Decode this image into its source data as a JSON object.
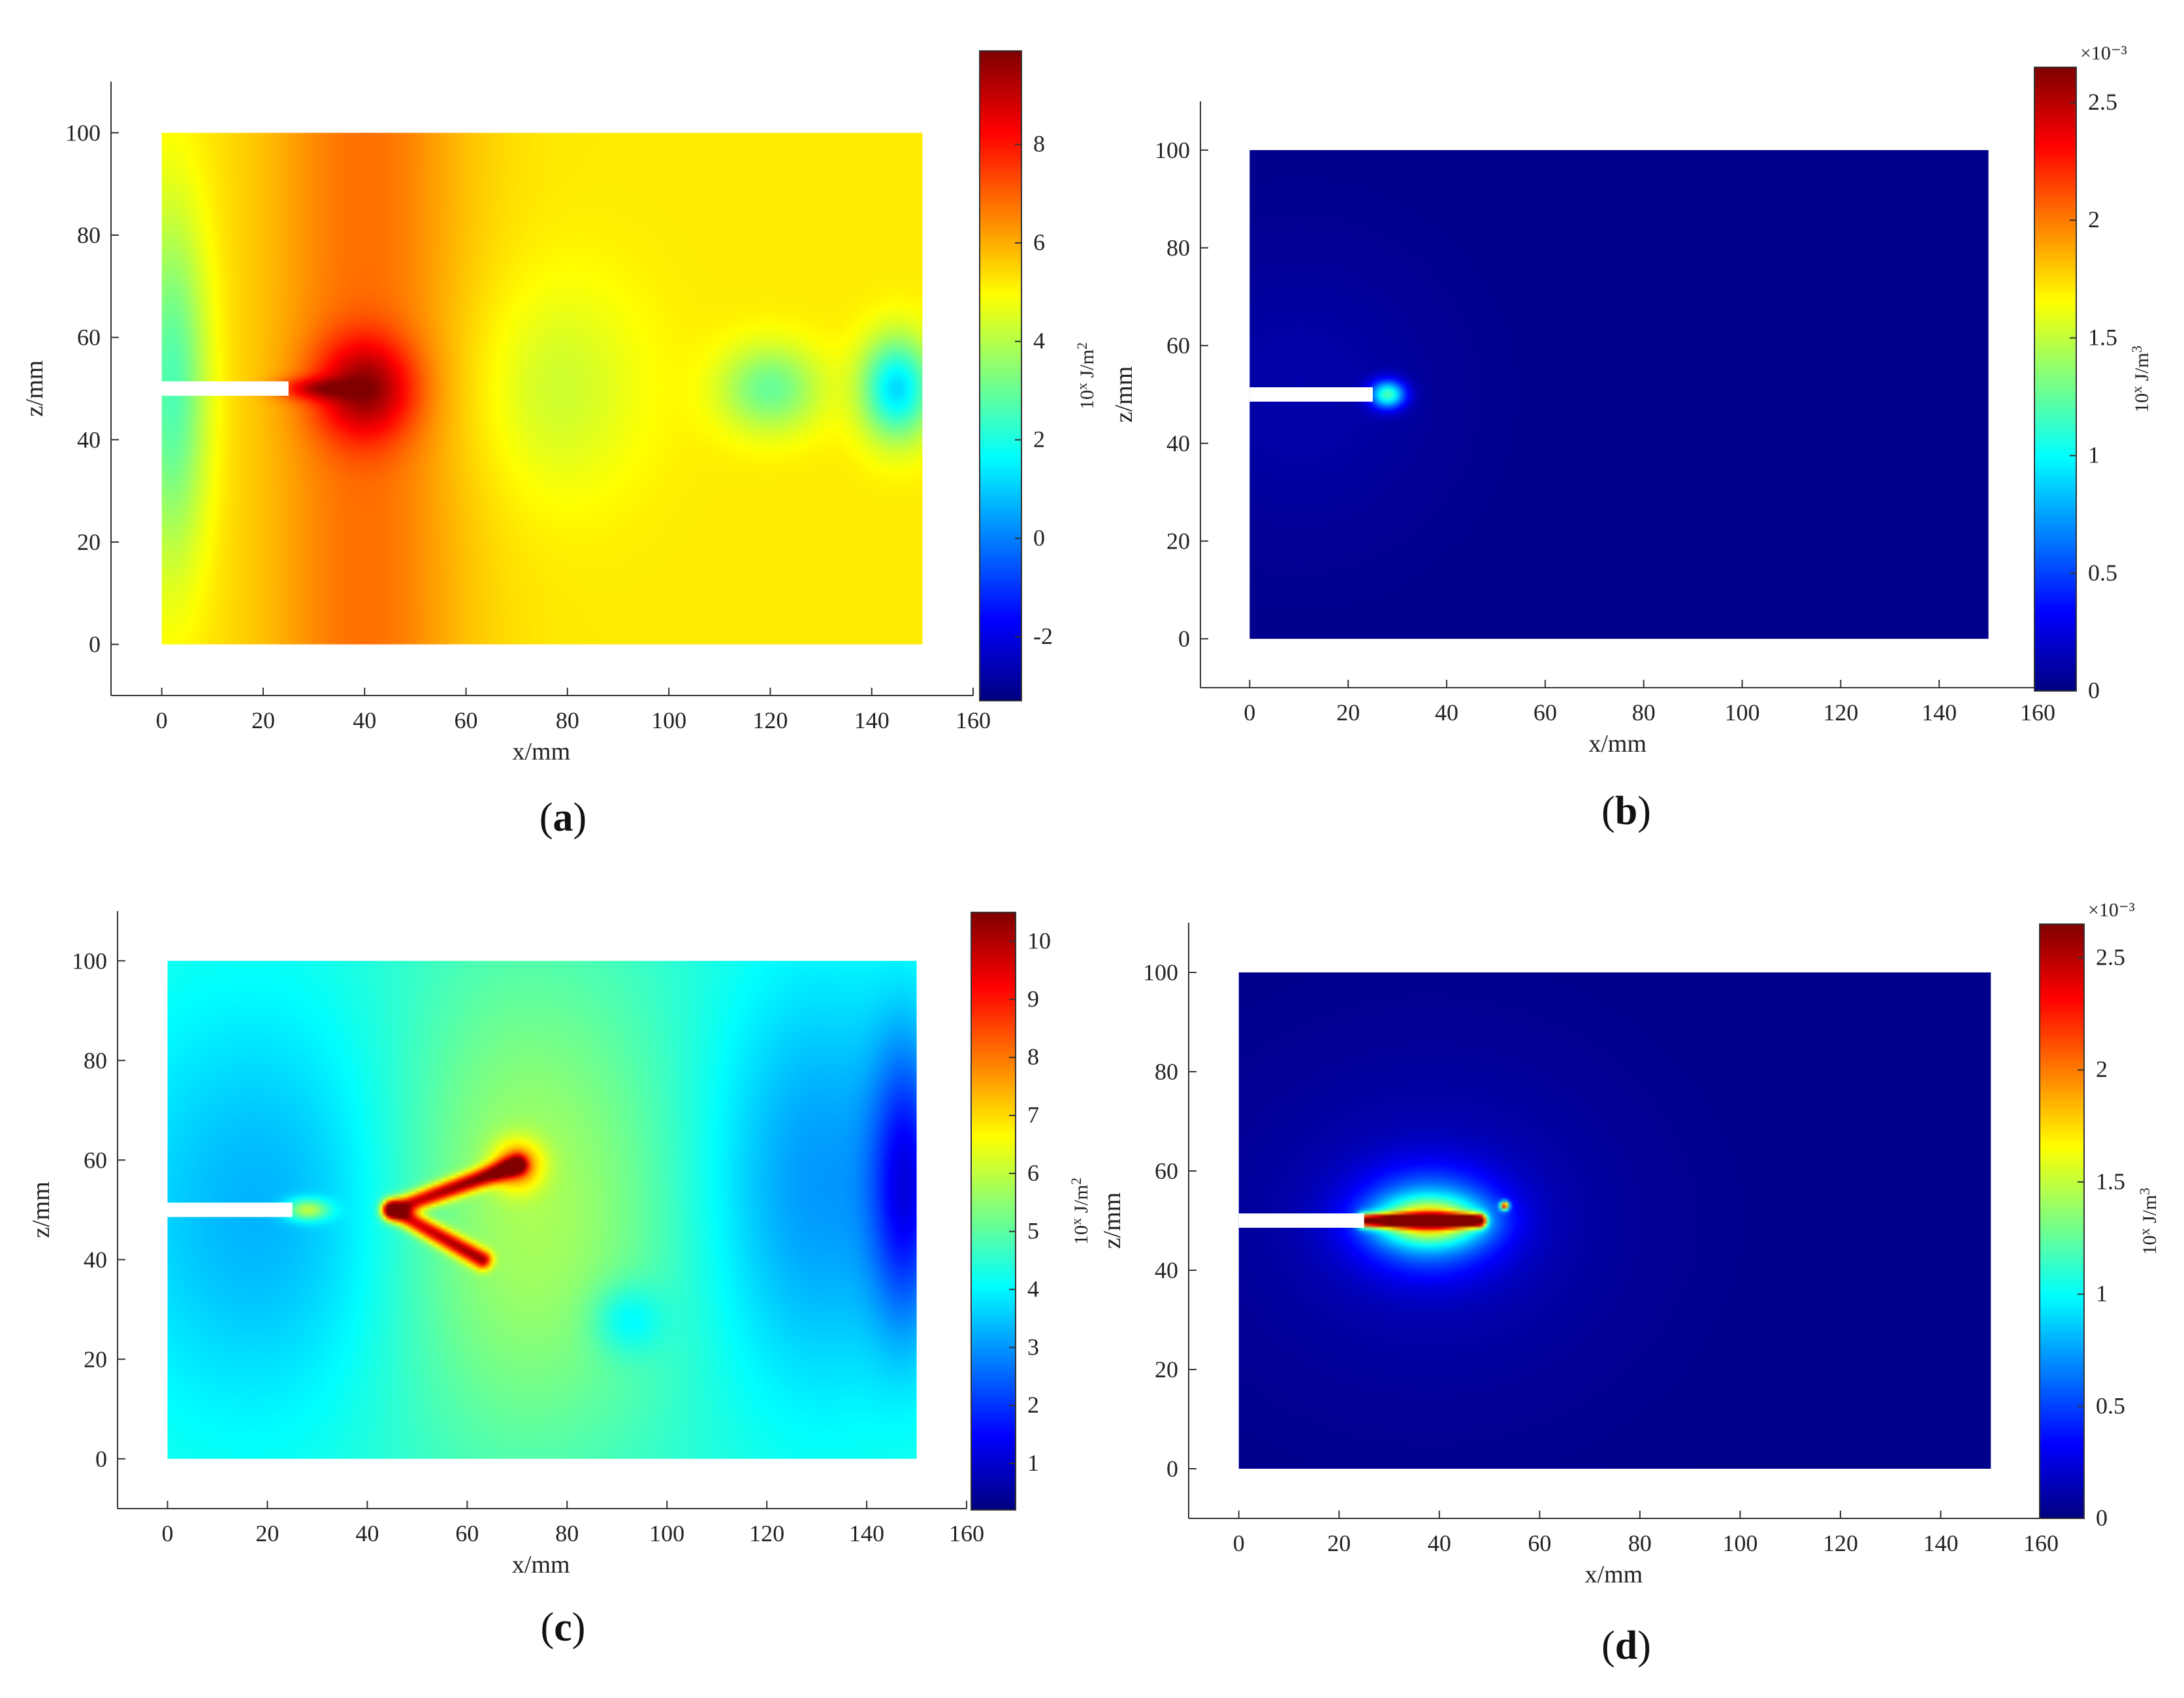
{
  "chart_data": [
    {
      "type": "heatmap",
      "panel_label": "a",
      "xlabel": "x/mm",
      "ylabel": "z/mm",
      "xlim": [
        -10,
        160
      ],
      "ylim": [
        -10,
        110
      ],
      "xticks": [
        "0",
        "20",
        "40",
        "60",
        "80",
        "100",
        "120",
        "140",
        "160"
      ],
      "yticks": [
        "0",
        "20",
        "40",
        "60",
        "80",
        "100"
      ],
      "domain_x": [
        0,
        150
      ],
      "domain_z": [
        0,
        100
      ],
      "notch": {
        "x_end": 25,
        "z": 50
      },
      "colorbar": {
        "label": "10^x J/m^2",
        "min": -3.3,
        "max": 9.9,
        "ticks": [
          "-2",
          "0",
          "2",
          "4",
          "6",
          "8"
        ],
        "exponent_label": ""
      },
      "field": {
        "background": 5.2,
        "features": [
          {
            "kind": "band",
            "x": 40,
            "width": 14,
            "amp": 1.6
          },
          {
            "kind": "blob",
            "x": 40,
            "z": 50,
            "sx": 7,
            "sz": 7,
            "amp": 3.0
          },
          {
            "kind": "blob",
            "x": 30,
            "z": 50,
            "sx": 5,
            "sz": 1.5,
            "amp": 2.0
          },
          {
            "kind": "blob",
            "x": 2,
            "z": 50,
            "sx": 5,
            "sz": 24,
            "amp": -2.6
          },
          {
            "kind": "blob",
            "x": 78,
            "z": 50,
            "sx": 12,
            "sz": 15,
            "amp": -0.9
          },
          {
            "kind": "blob",
            "x": 120,
            "z": 50,
            "sx": 7,
            "sz": 6,
            "amp": -2.2
          },
          {
            "kind": "blob",
            "x": 145,
            "z": 50,
            "sx": 5,
            "sz": 7,
            "amp": -4.0
          }
        ]
      }
    },
    {
      "type": "heatmap",
      "panel_label": "b",
      "xlabel": "x/mm",
      "ylabel": "z/mm",
      "xlim": [
        -10,
        160
      ],
      "ylim": [
        -10,
        110
      ],
      "xticks": [
        "0",
        "20",
        "40",
        "60",
        "80",
        "100",
        "120",
        "140",
        "160"
      ],
      "yticks": [
        "0",
        "20",
        "40",
        "60",
        "80",
        "100"
      ],
      "domain_x": [
        0,
        150
      ],
      "domain_z": [
        0,
        100
      ],
      "notch": {
        "x_end": 25,
        "z": 50
      },
      "colorbar": {
        "label": "10^x J/m^3",
        "min": 0,
        "max": 2.65,
        "ticks": [
          "0",
          "0.5",
          "1",
          "1.5",
          "2",
          "2.5"
        ],
        "exponent_label": "×10⁻³"
      },
      "field": {
        "background": 0.03,
        "features": [
          {
            "kind": "blob",
            "x": 10,
            "z": 50,
            "sx": 20,
            "sz": 20,
            "amp": 0.08
          },
          {
            "kind": "blob",
            "x": 28,
            "z": 50,
            "sx": 2.5,
            "sz": 2.0,
            "amp": 1.1
          }
        ]
      }
    },
    {
      "type": "heatmap",
      "panel_label": "c",
      "xlabel": "x/mm",
      "ylabel": "z/mm",
      "xlim": [
        -10,
        160
      ],
      "ylim": [
        -10,
        110
      ],
      "xticks": [
        "0",
        "20",
        "40",
        "60",
        "80",
        "100",
        "120",
        "140",
        "160"
      ],
      "yticks": [
        "0",
        "20",
        "40",
        "60",
        "80",
        "100"
      ],
      "domain_x": [
        0,
        150
      ],
      "domain_z": [
        0,
        100
      ],
      "notch": {
        "x_end": 25,
        "z": 50
      },
      "colorbar": {
        "label": "10^x J/m^2",
        "min": 0.2,
        "max": 10.5,
        "ticks": [
          "1",
          "2",
          "3",
          "4",
          "5",
          "6",
          "7",
          "8",
          "9",
          "10"
        ],
        "exponent_label": ""
      },
      "field": {
        "background": 4.4,
        "features": [
          {
            "kind": "blob",
            "x": 22,
            "z": 50,
            "sx": 24,
            "sz": 30,
            "amp": -1.2
          },
          {
            "kind": "blob",
            "x": 70,
            "z": 50,
            "sx": 22,
            "sz": 35,
            "amp": 1.5
          },
          {
            "kind": "blob",
            "x": 130,
            "z": 55,
            "sx": 16,
            "sz": 30,
            "amp": -1.4
          },
          {
            "kind": "blob",
            "x": 148,
            "z": 55,
            "sx": 5,
            "sz": 20,
            "amp": -2.5
          },
          {
            "kind": "blob",
            "x": 92,
            "z": 28,
            "sx": 5,
            "sz": 5,
            "amp": -1.0
          },
          {
            "kind": "ridge",
            "x1": 45,
            "z1": 50,
            "x2": 70,
            "z2": 59,
            "width": 1.3,
            "amp": 5.0
          },
          {
            "kind": "ridge",
            "x1": 45,
            "z1": 50,
            "x2": 63,
            "z2": 40,
            "width": 1.3,
            "amp": 4.8
          },
          {
            "kind": "blob",
            "x": 70,
            "z": 59,
            "sx": 3.5,
            "sz": 3.5,
            "amp": 2.5
          },
          {
            "kind": "blob",
            "x": 28,
            "z": 50,
            "sx": 3,
            "sz": 1.5,
            "amp": 2.5
          }
        ]
      }
    },
    {
      "type": "heatmap",
      "panel_label": "d",
      "xlabel": "x/mm",
      "ylabel": "z/mm",
      "xlim": [
        -10,
        160
      ],
      "ylim": [
        -10,
        110
      ],
      "xticks": [
        "0",
        "20",
        "40",
        "60",
        "80",
        "100",
        "120",
        "140",
        "160"
      ],
      "yticks": [
        "0",
        "20",
        "40",
        "60",
        "80",
        "100"
      ],
      "domain_x": [
        0,
        150
      ],
      "domain_z": [
        0,
        100
      ],
      "notch": {
        "x_end": 25,
        "z": 50
      },
      "colorbar": {
        "label": "10^x J/m^3",
        "min": 0,
        "max": 2.65,
        "ticks": [
          "0",
          "0.5",
          "1",
          "1.5",
          "2",
          "2.5"
        ],
        "exponent_label": "×10⁻³"
      },
      "field": {
        "background": 0.03,
        "features": [
          {
            "kind": "blob",
            "x": 38,
            "z": 50,
            "sx": 26,
            "sz": 22,
            "amp": 0.12
          },
          {
            "kind": "blob",
            "x": 38,
            "z": 50,
            "sx": 10,
            "sz": 7,
            "amp": 0.8
          },
          {
            "kind": "blob",
            "x": 38,
            "z": 50,
            "sx": 7,
            "sz": 3,
            "amp": 1.0
          },
          {
            "kind": "ridge",
            "x1": 25,
            "z1": 50,
            "x2": 48,
            "z2": 50,
            "width": 0.9,
            "amp": 2.5
          },
          {
            "kind": "blob",
            "x": 53,
            "z": 53,
            "sx": 0.6,
            "sz": 0.6,
            "amp": 2.0
          }
        ]
      }
    }
  ]
}
